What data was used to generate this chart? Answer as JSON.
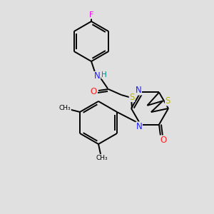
{
  "background_color": "#e0e0e0",
  "bond_color": "#000000",
  "atom_colors": {
    "F": "#ee00ee",
    "N": "#2020ff",
    "H": "#008888",
    "O": "#ff2020",
    "S": "#bbbb00",
    "C": "#000000"
  },
  "figsize": [
    3.0,
    3.0
  ],
  "dpi": 100,
  "lw": 1.4
}
